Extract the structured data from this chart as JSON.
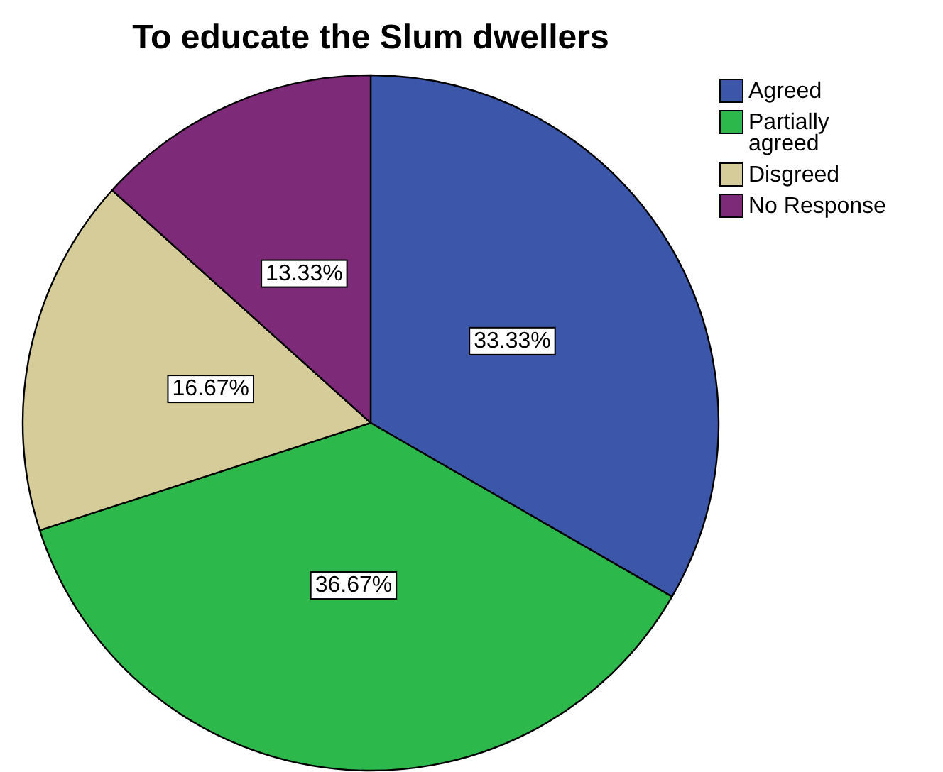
{
  "chart_data": {
    "type": "pie",
    "title": "To educate the Slum dwellers",
    "categories": [
      "Agreed",
      "Partially agreed",
      "Disgreed",
      "No Response"
    ],
    "values": [
      33.33,
      36.67,
      16.67,
      13.33
    ],
    "colors": [
      "#3c57a9",
      "#2db84b",
      "#d5cc99",
      "#7d2a79"
    ],
    "value_labels": [
      "33.33%",
      "36.67%",
      "16.67%",
      "13.33%"
    ],
    "legend": "top right"
  }
}
